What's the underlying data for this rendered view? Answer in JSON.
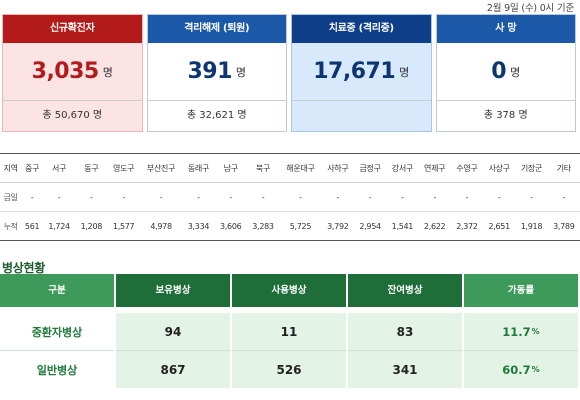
{
  "date_text": "2월 9일 (수) 0시 기준",
  "cards": [
    {
      "title": "신규확진자",
      "value": "3,035",
      "unit": "명",
      "total": "총 50,670 명"
    },
    {
      "title": "격리해제 (퇴원)",
      "value": "391",
      "unit": "명",
      "total": "총 32,621 명"
    },
    {
      "title": "치료중 (격리중)",
      "value": "17,671",
      "unit": "명",
      "total": ""
    },
    {
      "title": "사 망",
      "value": "0",
      "unit": "명",
      "total": "총 378 명"
    }
  ],
  "districts": {
    "header": [
      "지역",
      "중구",
      "서구",
      "동구",
      "영도구",
      "부산진구",
      "동래구",
      "남구",
      "북구",
      "해운대구",
      "사하구",
      "금정구",
      "강서구",
      "연제구",
      "수영구",
      "사상구",
      "기장군",
      "기타"
    ],
    "today": [
      "금일",
      "-",
      "-",
      "-",
      "-",
      "-",
      "-",
      "-",
      "-",
      "-",
      "-",
      "-",
      "-",
      "-",
      "-",
      "-",
      "-",
      "-"
    ],
    "cumulative": [
      "누적",
      "561",
      "1,724",
      "1,208",
      "1,577",
      "4,978",
      "3,334",
      "3,606",
      "3,283",
      "5,725",
      "3,792",
      "2,954",
      "1,541",
      "2,622",
      "2,372",
      "2,651",
      "1,918",
      "3,789"
    ]
  },
  "beds": {
    "title": "병상현황",
    "headers": [
      "구분",
      "보유병상",
      "사용병상",
      "잔여병상",
      "가동률"
    ],
    "rows": [
      {
        "label": "중환자병상",
        "total": "94",
        "used": "11",
        "remaining": "83",
        "rate": "11.7",
        "rate_unit": "%"
      },
      {
        "label": "일반병상",
        "total": "867",
        "used": "526",
        "remaining": "341",
        "rate": "60.7",
        "rate_unit": "%"
      }
    ]
  }
}
